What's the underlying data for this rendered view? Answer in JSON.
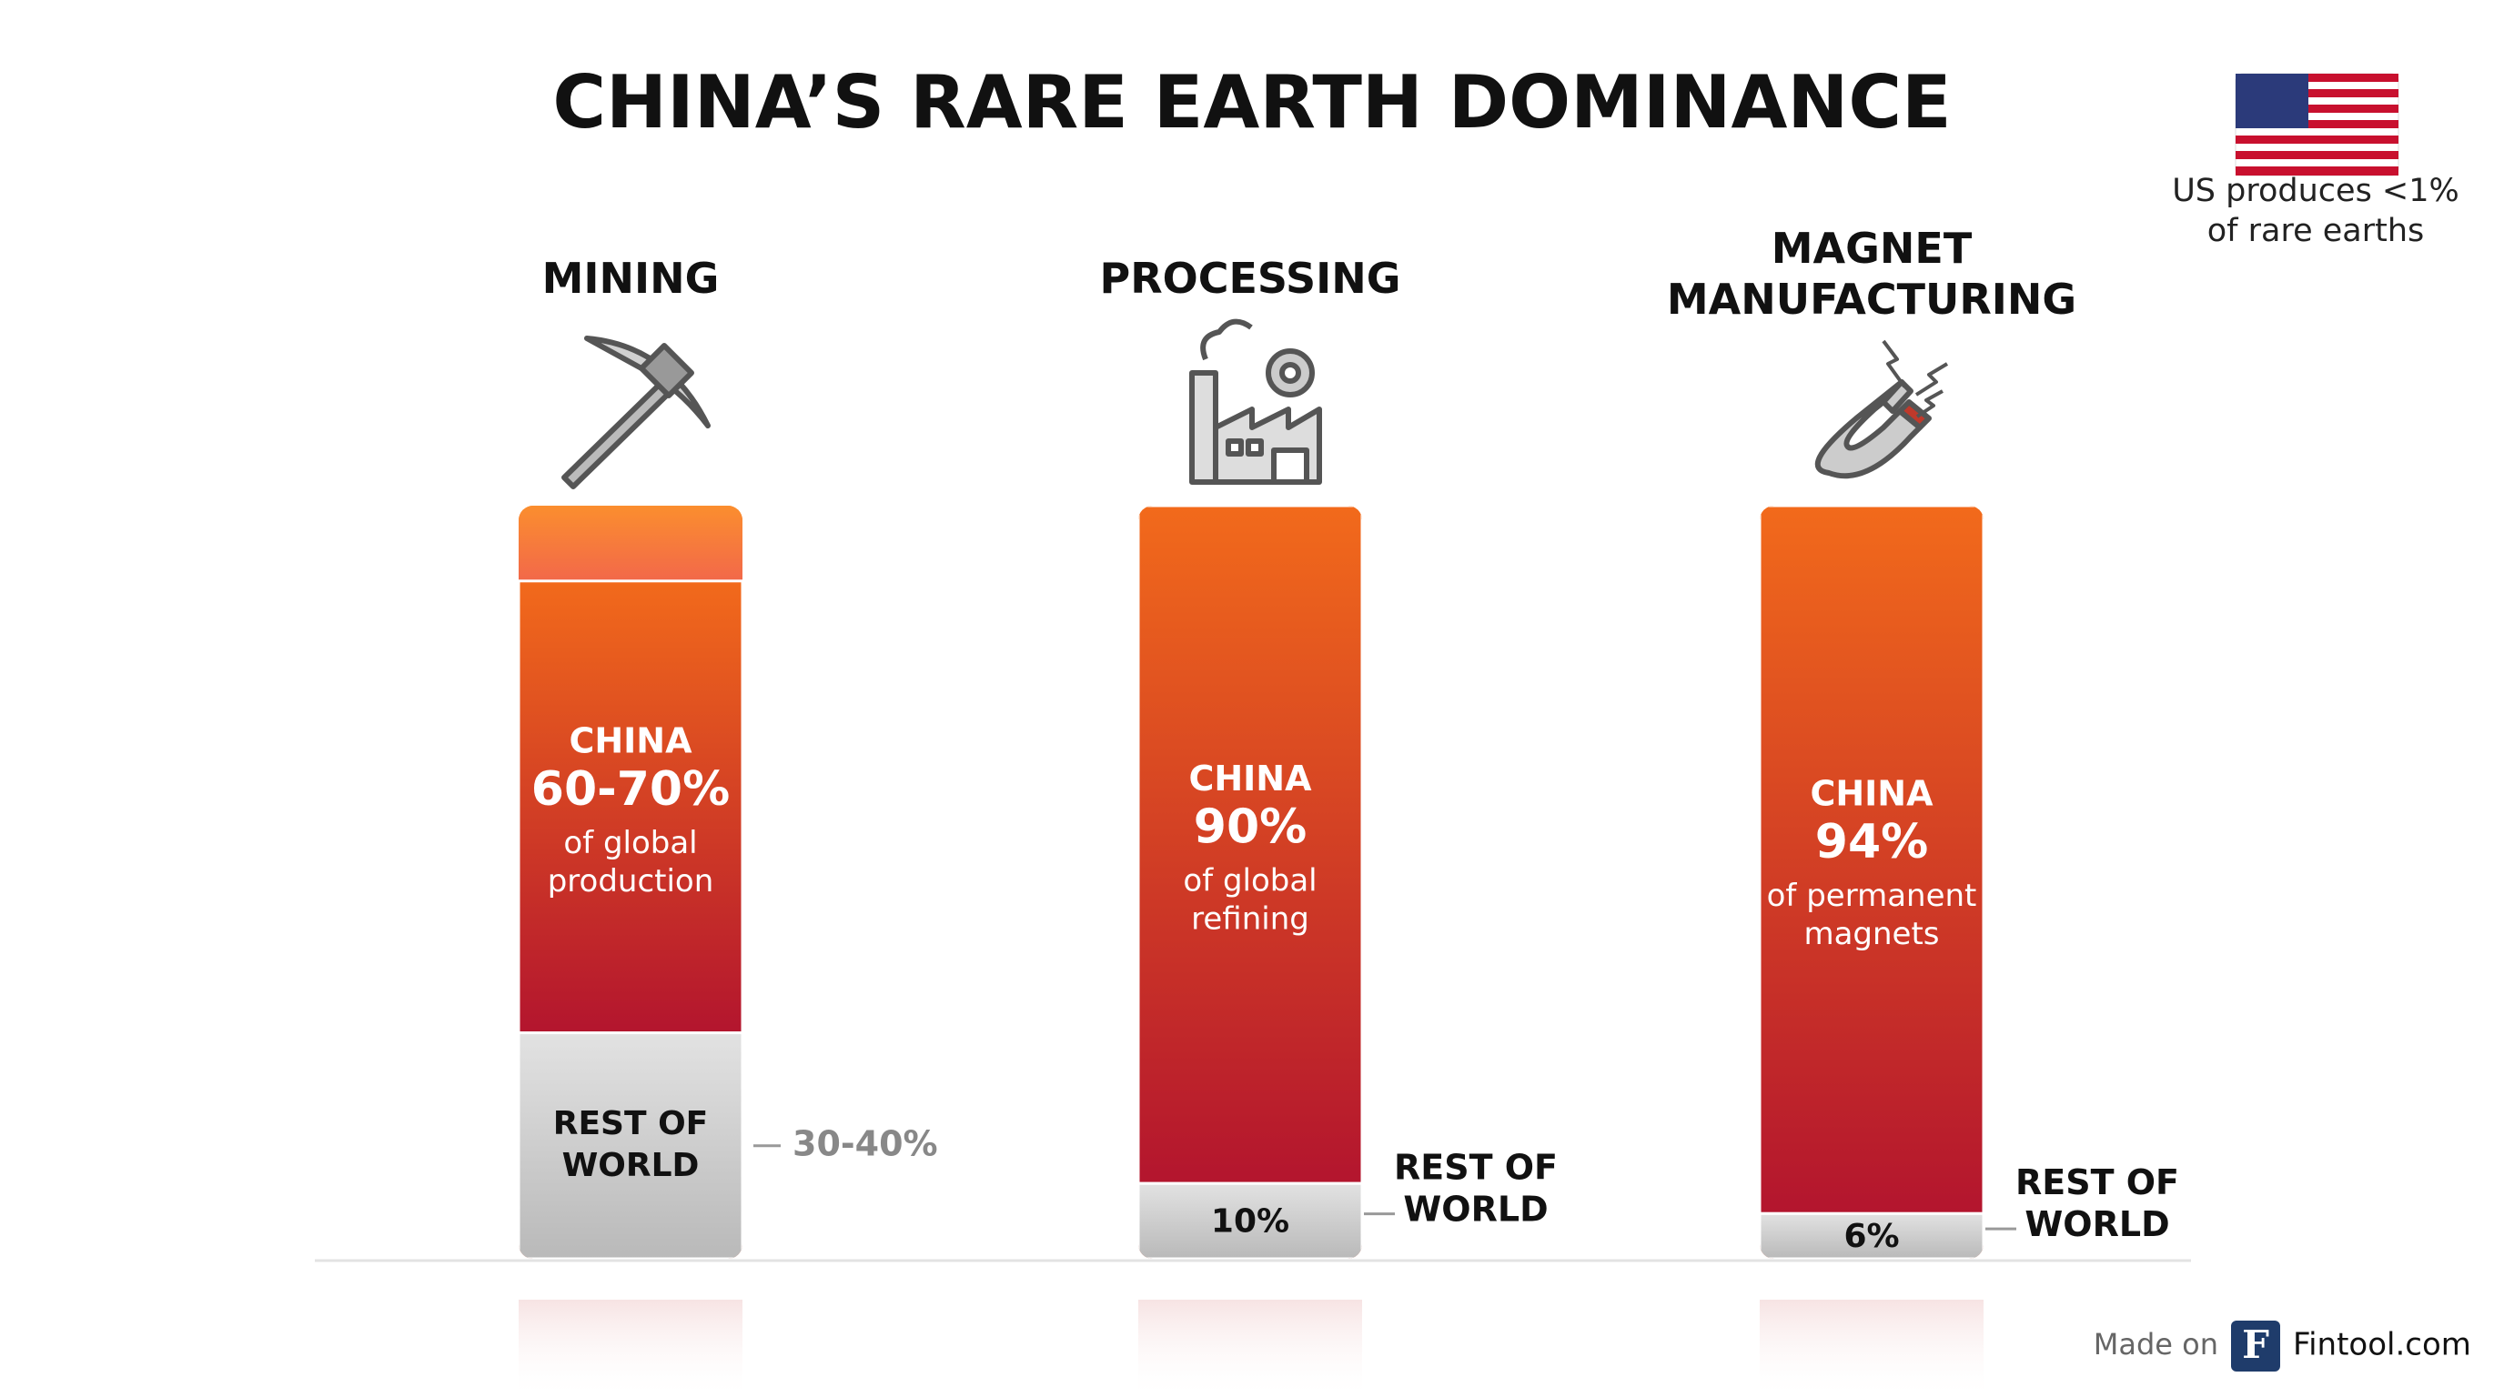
{
  "chart_data": {
    "type": "stacked-bar",
    "title": "CHINA’S RARE EARTH DOMINANCE",
    "ylim": [
      0,
      100
    ],
    "categories": [
      "MINING",
      "PROCESSING",
      "MAGNET MANUFACTURING"
    ],
    "series": [
      {
        "name": "CHINA",
        "color": "#d8312a",
        "values": [
          [
            60,
            70
          ],
          90,
          94
        ],
        "value_labels": [
          "60-70%",
          "90%",
          "94%"
        ],
        "descriptions": [
          "of global production",
          "of global refining",
          "of permanent magnets"
        ]
      },
      {
        "name": "REST OF WORLD",
        "color": "#c9c9c9",
        "values": [
          [
            30,
            40
          ],
          10,
          6
        ],
        "value_labels": [
          "30-40%",
          "10%",
          "6%"
        ]
      }
    ],
    "note": "US produces <1% of rare earths",
    "credit": {
      "prefix": "Made on",
      "logo": "F",
      "site": "Fintool.com"
    }
  }
}
